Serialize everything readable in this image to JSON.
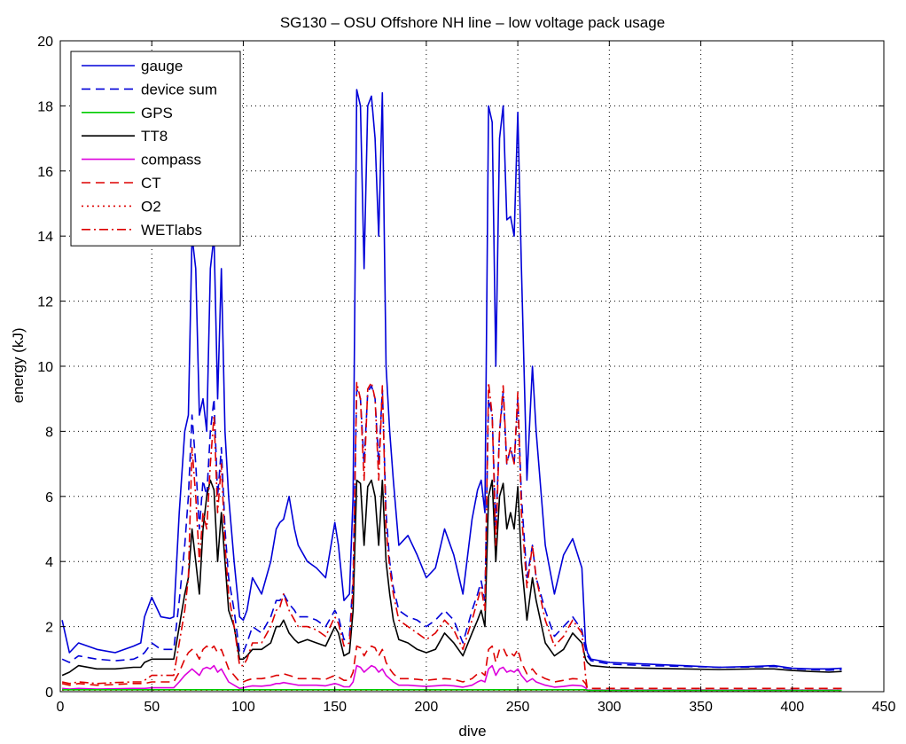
{
  "chart_data": {
    "type": "line",
    "title": "SG130 – OSU Offshore NH line – low voltage pack usage",
    "xlabel": "dive",
    "ylabel": "energy (kJ)",
    "xlim": [
      0,
      450
    ],
    "ylim": [
      0,
      20
    ],
    "x_ticks": [
      "0",
      "50",
      "100",
      "150",
      "200",
      "250",
      "300",
      "350",
      "400",
      "450"
    ],
    "y_ticks": [
      "0",
      "2",
      "4",
      "6",
      "8",
      "10",
      "12",
      "14",
      "16",
      "18",
      "20"
    ],
    "grid": true,
    "legend_position": "top-left",
    "x": [
      1,
      5,
      10,
      20,
      30,
      40,
      44,
      46,
      50,
      55,
      60,
      62,
      65,
      68,
      70,
      72,
      74,
      76,
      78,
      80,
      82,
      84,
      86,
      88,
      90,
      92,
      95,
      98,
      100,
      102,
      105,
      110,
      115,
      118,
      120,
      122,
      125,
      128,
      130,
      135,
      140,
      145,
      150,
      152,
      155,
      158,
      160,
      162,
      164,
      166,
      168,
      170,
      172,
      174,
      176,
      178,
      180,
      182,
      185,
      190,
      195,
      200,
      205,
      210,
      215,
      220,
      225,
      228,
      230,
      232,
      234,
      236,
      238,
      240,
      242,
      244,
      246,
      248,
      250,
      252,
      255,
      258,
      260,
      265,
      270,
      275,
      280,
      285,
      287,
      288,
      290,
      300,
      320,
      340,
      360,
      380,
      390,
      400,
      410,
      420,
      427
    ],
    "series": [
      {
        "name": "gauge",
        "color": "#0000d8",
        "dash": "solid",
        "values": [
          2.2,
          1.2,
          1.5,
          1.3,
          1.2,
          1.4,
          1.5,
          2.3,
          2.9,
          2.3,
          2.25,
          2.3,
          5.5,
          8.0,
          8.5,
          14.0,
          13.0,
          8.5,
          9.0,
          8.0,
          13.0,
          14.0,
          9.0,
          13.0,
          8.0,
          6.0,
          4.0,
          2.3,
          2.2,
          2.5,
          3.5,
          3.0,
          4.0,
          5.0,
          5.2,
          5.3,
          6.0,
          5.0,
          4.5,
          4.0,
          3.8,
          3.5,
          5.2,
          4.5,
          2.8,
          3.0,
          6.0,
          18.5,
          18.0,
          13.0,
          18.0,
          18.3,
          17.0,
          14.0,
          18.4,
          10.0,
          8.0,
          6.5,
          4.5,
          4.8,
          4.2,
          3.5,
          3.8,
          5.0,
          4.2,
          3.0,
          5.3,
          6.2,
          6.5,
          5.5,
          18.0,
          17.5,
          10.0,
          17.0,
          18.0,
          14.5,
          14.6,
          14.0,
          17.8,
          13.0,
          6.5,
          10.0,
          8.0,
          4.5,
          3.0,
          4.2,
          4.7,
          3.8,
          1.5,
          1.2,
          1.0,
          0.9,
          0.85,
          0.8,
          0.75,
          0.78,
          0.8,
          0.72,
          0.7,
          0.7,
          0.72
        ]
      },
      {
        "name": "device sum",
        "color": "#0000d8",
        "dash": "dashed",
        "values": [
          1.0,
          0.9,
          1.1,
          1.0,
          0.95,
          1.0,
          1.1,
          1.2,
          1.5,
          1.3,
          1.3,
          1.3,
          2.8,
          4.5,
          6.0,
          8.5,
          7.0,
          5.0,
          6.5,
          6.0,
          8.0,
          9.0,
          6.0,
          7.5,
          5.0,
          3.5,
          2.5,
          1.2,
          1.2,
          1.5,
          2.0,
          1.8,
          2.3,
          2.8,
          2.8,
          3.0,
          2.7,
          2.5,
          2.3,
          2.3,
          2.2,
          2.0,
          2.5,
          2.3,
          1.6,
          1.7,
          3.5,
          9.3,
          9.0,
          7.0,
          9.2,
          9.4,
          9.0,
          7.0,
          9.3,
          5.5,
          4.0,
          3.2,
          2.5,
          2.3,
          2.2,
          2.0,
          2.2,
          2.5,
          2.2,
          1.5,
          2.5,
          3.0,
          3.4,
          2.8,
          9.0,
          8.5,
          5.0,
          8.0,
          9.2,
          7.0,
          7.5,
          7.0,
          9.0,
          6.0,
          3.5,
          4.5,
          3.5,
          2.5,
          1.7,
          2.0,
          2.3,
          1.9,
          1.3,
          1.1,
          0.95,
          0.85,
          0.8,
          0.78,
          0.75,
          0.76,
          0.78,
          0.7,
          0.68,
          0.66,
          0.68
        ]
      },
      {
        "name": "GPS",
        "color": "#00cc00",
        "dash": "solid",
        "values": [
          0.06,
          0.06,
          0.06,
          0.06,
          0.06,
          0.06,
          0.06,
          0.06,
          0.06,
          0.06,
          0.06,
          0.06,
          0.06,
          0.06,
          0.06,
          0.06,
          0.06,
          0.06,
          0.06,
          0.06,
          0.06,
          0.06,
          0.06,
          0.06,
          0.06,
          0.06,
          0.06,
          0.06,
          0.06,
          0.06,
          0.06,
          0.06,
          0.06,
          0.06,
          0.06,
          0.06,
          0.06,
          0.06,
          0.06,
          0.06,
          0.06,
          0.06,
          0.06,
          0.06,
          0.06,
          0.06,
          0.06,
          0.06,
          0.06,
          0.06,
          0.06,
          0.06,
          0.06,
          0.06,
          0.06,
          0.06,
          0.06,
          0.06,
          0.06,
          0.06,
          0.06,
          0.06,
          0.06,
          0.06,
          0.06,
          0.06,
          0.06,
          0.06,
          0.06,
          0.06,
          0.06,
          0.06,
          0.06,
          0.06,
          0.06,
          0.06,
          0.06,
          0.06,
          0.06,
          0.06,
          0.06,
          0.06,
          0.06,
          0.06,
          0.06,
          0.06,
          0.06,
          0.06,
          0.06,
          0.04,
          0.04,
          0.04,
          0.04,
          0.04,
          0.04,
          0.04,
          0.04,
          0.04,
          0.04,
          0.04,
          0.04
        ]
      },
      {
        "name": "TT8",
        "color": "#000000",
        "dash": "solid",
        "values": [
          0.5,
          0.6,
          0.8,
          0.7,
          0.7,
          0.75,
          0.75,
          0.9,
          1.0,
          1.0,
          1.0,
          1.0,
          2.0,
          3.0,
          3.5,
          5.0,
          4.0,
          3.0,
          5.0,
          6.0,
          6.5,
          6.2,
          4.0,
          5.5,
          4.0,
          2.5,
          2.0,
          1.0,
          1.0,
          1.1,
          1.3,
          1.3,
          1.5,
          2.0,
          2.0,
          2.2,
          1.8,
          1.6,
          1.5,
          1.6,
          1.5,
          1.4,
          2.0,
          1.8,
          1.1,
          1.2,
          2.5,
          6.5,
          6.4,
          4.5,
          6.3,
          6.5,
          6.0,
          4.5,
          6.5,
          4.0,
          3.0,
          2.2,
          1.6,
          1.5,
          1.3,
          1.2,
          1.3,
          1.8,
          1.5,
          1.1,
          1.8,
          2.2,
          2.5,
          2.0,
          6.0,
          6.5,
          4.0,
          6.0,
          6.4,
          5.0,
          5.5,
          5.0,
          6.3,
          4.0,
          2.2,
          3.5,
          2.8,
          1.5,
          1.1,
          1.3,
          1.8,
          1.5,
          1.0,
          0.9,
          0.8,
          0.75,
          0.72,
          0.7,
          0.68,
          0.7,
          0.7,
          0.65,
          0.62,
          0.6,
          0.62
        ]
      },
      {
        "name": "compass",
        "color": "#dd00dd",
        "dash": "solid",
        "values": [
          0.1,
          0.08,
          0.1,
          0.08,
          0.09,
          0.1,
          0.1,
          0.1,
          0.12,
          0.12,
          0.12,
          0.12,
          0.3,
          0.5,
          0.6,
          0.7,
          0.6,
          0.5,
          0.7,
          0.75,
          0.7,
          0.8,
          0.6,
          0.7,
          0.5,
          0.3,
          0.2,
          0.1,
          0.12,
          0.15,
          0.18,
          0.17,
          0.2,
          0.25,
          0.25,
          0.28,
          0.25,
          0.22,
          0.2,
          0.2,
          0.2,
          0.18,
          0.25,
          0.22,
          0.15,
          0.15,
          0.3,
          0.8,
          0.75,
          0.6,
          0.7,
          0.8,
          0.75,
          0.6,
          0.7,
          0.5,
          0.4,
          0.3,
          0.2,
          0.2,
          0.18,
          0.16,
          0.18,
          0.2,
          0.18,
          0.14,
          0.2,
          0.3,
          0.35,
          0.3,
          0.7,
          0.8,
          0.5,
          0.7,
          0.75,
          0.6,
          0.65,
          0.6,
          0.7,
          0.5,
          0.3,
          0.4,
          0.3,
          0.2,
          0.14,
          0.16,
          0.2,
          0.18,
          0.12,
          0.05,
          0.05,
          0.05,
          0.05,
          0.05,
          0.05,
          0.05,
          0.05,
          0.05,
          0.05,
          0.05,
          0.05
        ]
      },
      {
        "name": "CT",
        "color": "#dd0000",
        "dash": "dashed",
        "values": [
          0.25,
          0.2,
          0.25,
          0.2,
          0.22,
          0.25,
          0.25,
          0.25,
          0.3,
          0.3,
          0.3,
          0.3,
          0.6,
          1.0,
          1.2,
          1.3,
          1.2,
          1.0,
          1.3,
          1.4,
          1.3,
          1.4,
          1.2,
          1.3,
          1.0,
          0.7,
          0.5,
          0.3,
          0.3,
          0.35,
          0.4,
          0.4,
          0.45,
          0.5,
          0.5,
          0.55,
          0.5,
          0.45,
          0.4,
          0.4,
          0.4,
          0.38,
          0.5,
          0.45,
          0.35,
          0.35,
          0.6,
          1.4,
          1.35,
          1.1,
          1.3,
          1.4,
          1.35,
          1.1,
          1.3,
          0.9,
          0.7,
          0.55,
          0.4,
          0.4,
          0.38,
          0.35,
          0.38,
          0.4,
          0.38,
          0.3,
          0.4,
          0.55,
          0.6,
          0.5,
          1.3,
          1.4,
          0.9,
          1.3,
          1.35,
          1.1,
          1.2,
          1.1,
          1.3,
          0.9,
          0.55,
          0.7,
          0.55,
          0.4,
          0.3,
          0.35,
          0.4,
          0.38,
          0.25,
          0.1,
          0.1,
          0.1,
          0.1,
          0.1,
          0.1,
          0.1,
          0.1,
          0.1,
          0.1,
          0.1,
          0.1
        ]
      },
      {
        "name": "O2",
        "color": "#dd0000",
        "dash": "dotted",
        "values": [
          0.05,
          0.05,
          0.05,
          0.05,
          0.05,
          0.05,
          0.05,
          0.05,
          0.05,
          0.05,
          0.05,
          0.05,
          0.05,
          0.05,
          0.05,
          0.05,
          0.05,
          0.05,
          0.05,
          0.05,
          0.05,
          0.05,
          0.05,
          0.05,
          0.05,
          0.05,
          0.05,
          0.05,
          0.05,
          0.05,
          0.05,
          0.05,
          0.05,
          0.05,
          0.05,
          0.05,
          0.05,
          0.05,
          0.05,
          0.05,
          0.05,
          0.05,
          0.05,
          0.05,
          0.05,
          0.05,
          0.05,
          0.05,
          0.05,
          0.05,
          0.05,
          0.05,
          0.05,
          0.05,
          0.05,
          0.05,
          0.05,
          0.05,
          0.05,
          0.05,
          0.05,
          0.05,
          0.05,
          0.05,
          0.05,
          0.05,
          0.05,
          0.05,
          0.05,
          0.05,
          0.05,
          0.05,
          0.05,
          0.05,
          0.05,
          0.05,
          0.05,
          0.05,
          0.05,
          0.05,
          0.05,
          0.05,
          0.05,
          0.05,
          0.05,
          0.05,
          0.05,
          0.05,
          0.05,
          0.02,
          0.02,
          0.02,
          0.02,
          0.02,
          0.02,
          0.02,
          0.02,
          0.02,
          0.02,
          0.02,
          0.02
        ]
      },
      {
        "name": "WETlabs",
        "color": "#dd0000",
        "dash": "dashdot",
        "values": [
          0.3,
          0.25,
          0.3,
          0.25,
          0.28,
          0.3,
          0.3,
          0.35,
          0.5,
          0.5,
          0.5,
          0.5,
          1.5,
          2.5,
          3.5,
          7.5,
          6.0,
          4.0,
          5.5,
          5.0,
          7.0,
          8.5,
          5.5,
          7.0,
          4.5,
          3.0,
          2.0,
          0.8,
          0.8,
          1.0,
          1.5,
          1.5,
          2.0,
          2.5,
          2.6,
          3.0,
          2.5,
          2.2,
          2.0,
          2.0,
          1.9,
          1.7,
          2.3,
          2.1,
          1.4,
          1.5,
          3.2,
          9.5,
          9.0,
          6.5,
          9.3,
          9.5,
          9.0,
          6.5,
          9.4,
          5.0,
          3.8,
          3.0,
          2.2,
          2.0,
          1.8,
          1.6,
          1.8,
          2.2,
          1.9,
          1.3,
          2.2,
          2.8,
          3.2,
          2.5,
          9.5,
          8.5,
          4.5,
          8.0,
          9.4,
          7.0,
          7.5,
          7.0,
          9.2,
          5.5,
          3.2,
          4.5,
          3.5,
          2.2,
          1.4,
          1.7,
          2.2,
          1.8,
          0.5,
          0.05,
          0.05,
          0.05,
          0.05,
          0.05,
          0.05,
          0.05,
          0.05,
          0.05,
          0.05,
          0.05,
          0.05
        ]
      }
    ]
  }
}
